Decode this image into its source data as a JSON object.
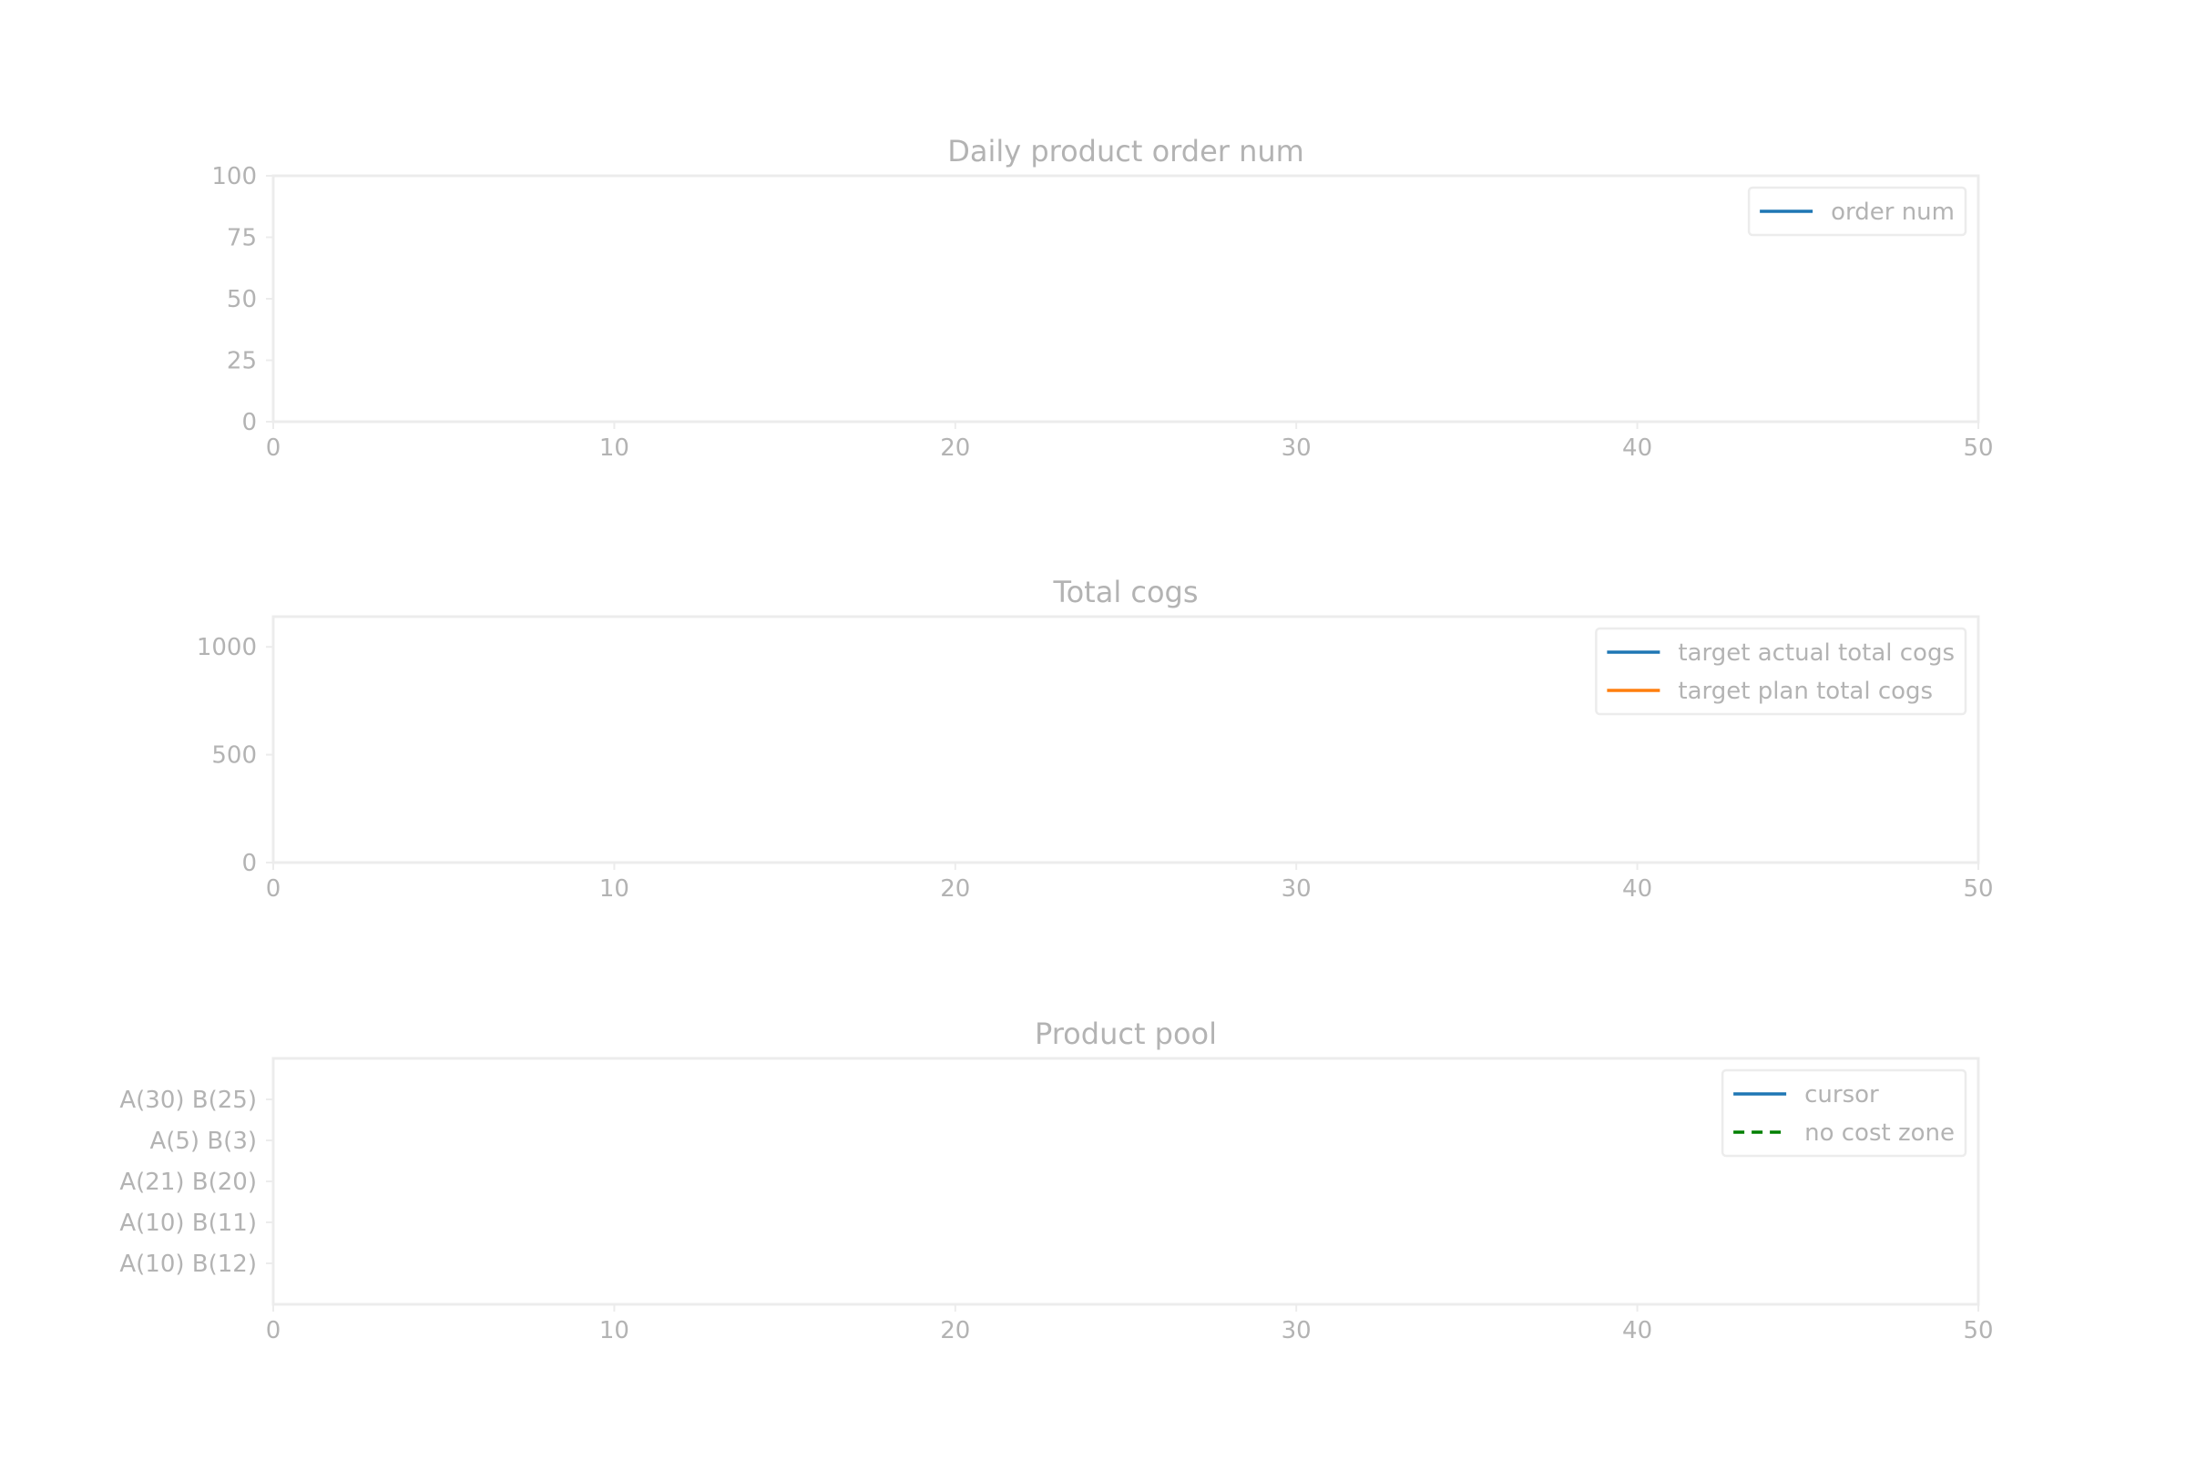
{
  "figure": {
    "background": "#ffffff",
    "text_color": "#b3b3b3",
    "axis_color": "#ececec"
  },
  "chart_data": [
    {
      "type": "line",
      "title": "Daily product order num",
      "xlabel": "",
      "ylabel": "",
      "xlim": [
        0,
        50
      ],
      "ylim": [
        0,
        100
      ],
      "x_ticks": [
        0,
        10,
        20,
        30,
        40,
        50
      ],
      "y_ticks": [
        0,
        25,
        50,
        75,
        100
      ],
      "grid": false,
      "legend_position": "top-right",
      "series": [
        {
          "name": "order num",
          "color": "#1f77b4",
          "dash": "solid",
          "x": [],
          "y": []
        }
      ]
    },
    {
      "type": "line",
      "title": "Total cogs",
      "xlabel": "",
      "ylabel": "",
      "xlim": [
        0,
        50
      ],
      "ylim": [
        0,
        1140
      ],
      "x_ticks": [
        0,
        10,
        20,
        30,
        40,
        50
      ],
      "y_ticks": [
        0,
        500,
        1000
      ],
      "grid": false,
      "legend_position": "top-right",
      "series": [
        {
          "name": "target actual total cogs",
          "color": "#1f77b4",
          "dash": "solid",
          "x": [],
          "y": []
        },
        {
          "name": "target plan total cogs",
          "color": "#ff7f0e",
          "dash": "solid",
          "x": [],
          "y": []
        }
      ]
    },
    {
      "type": "line",
      "title": "Product pool",
      "xlabel": "",
      "ylabel": "",
      "xlim": [
        0,
        50
      ],
      "ylim": [
        0,
        6
      ],
      "x_ticks": [
        0,
        10,
        20,
        30,
        40,
        50
      ],
      "y_ticks": [
        1,
        2,
        3,
        4,
        5
      ],
      "y_tick_labels": [
        "A(10) B(12)",
        "A(10) B(11)",
        "A(21) B(20)",
        "A(5) B(3)",
        "A(30) B(25)"
      ],
      "grid": false,
      "legend_position": "top-right",
      "series": [
        {
          "name": "cursor",
          "color": "#1f77b4",
          "dash": "solid",
          "x": [],
          "y": []
        },
        {
          "name": "no cost zone",
          "color": "#008000",
          "dash": "dashed",
          "x": [],
          "y": []
        }
      ]
    }
  ]
}
